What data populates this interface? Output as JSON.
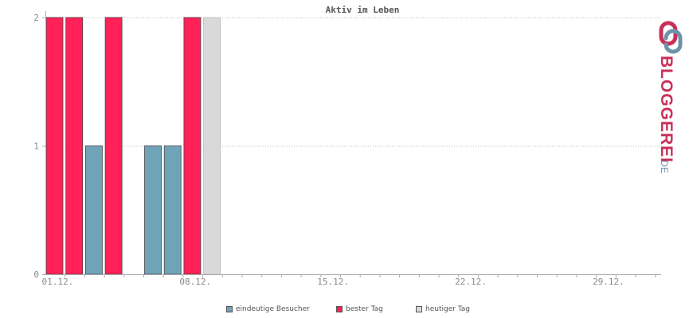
{
  "chart_data": {
    "type": "bar",
    "title": "Aktiv im Leben",
    "xlabel": "",
    "ylabel": "",
    "ylim": [
      0,
      2
    ],
    "yticks": [
      "0",
      "1",
      "2"
    ],
    "grid": true,
    "legend_position": "bottom",
    "x_tick_labels": [
      "01.12.",
      "08.12.",
      "15.12.",
      "22.12.",
      "29.12."
    ],
    "days": 31,
    "bars": [
      {
        "day": 1,
        "value": 2,
        "series": "best"
      },
      {
        "day": 2,
        "value": 2,
        "series": "best"
      },
      {
        "day": 3,
        "value": 1,
        "series": "visitors"
      },
      {
        "day": 4,
        "value": 2,
        "series": "best"
      },
      {
        "day": 6,
        "value": 1,
        "series": "visitors"
      },
      {
        "day": 7,
        "value": 1,
        "series": "visitors"
      },
      {
        "day": 8,
        "value": 2,
        "series": "best"
      },
      {
        "day": 9,
        "value": 2,
        "series": "today"
      }
    ],
    "series": [
      {
        "key": "visitors",
        "name": "eindeutige Besucher",
        "color": "#6fa3b8"
      },
      {
        "key": "best",
        "name": "bester Tag",
        "color": "#ff2158"
      },
      {
        "key": "today",
        "name": "heutiger Tag",
        "color": "#d9d9d9"
      }
    ]
  },
  "brand": {
    "name": "BLOGGEREI",
    "suffix": ".DE",
    "colors": {
      "primary": "#c8305a",
      "secondary": "#6d93ab"
    }
  }
}
